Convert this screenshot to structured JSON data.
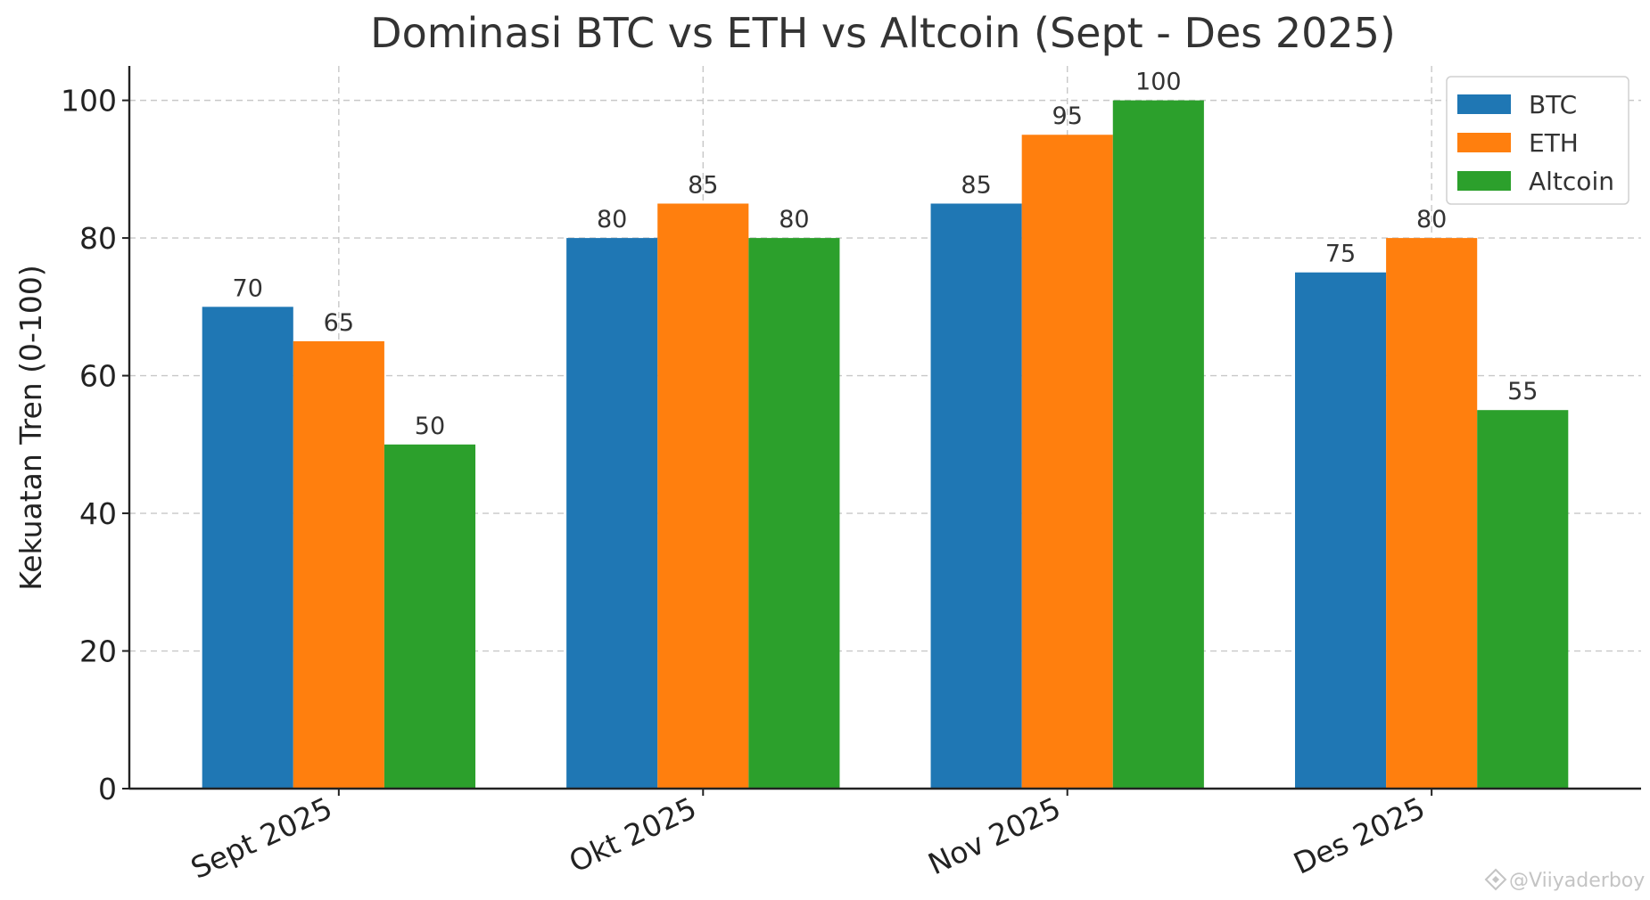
{
  "chart_data": {
    "type": "bar",
    "title": "Dominasi BTC vs ETH vs Altcoin (Sept - Des 2025)",
    "xlabel": "",
    "ylabel": "Kekuatan Tren (0-100)",
    "categories": [
      "Sept 2025",
      "Okt 2025",
      "Nov 2025",
      "Des 2025"
    ],
    "series": [
      {
        "name": "BTC",
        "color": "#1f77b4",
        "values": [
          70,
          80,
          85,
          75
        ]
      },
      {
        "name": "ETH",
        "color": "#ff7f0e",
        "values": [
          65,
          85,
          95,
          80
        ]
      },
      {
        "name": "Altcoin",
        "color": "#2ca02c",
        "values": [
          50,
          80,
          100,
          55
        ]
      }
    ],
    "ylim": [
      0,
      105
    ],
    "yticks": [
      0,
      20,
      40,
      60,
      80,
      100
    ],
    "grid": true,
    "legend_position": "top-right",
    "data_labels": true
  },
  "watermark": "@Viiyaderboy"
}
